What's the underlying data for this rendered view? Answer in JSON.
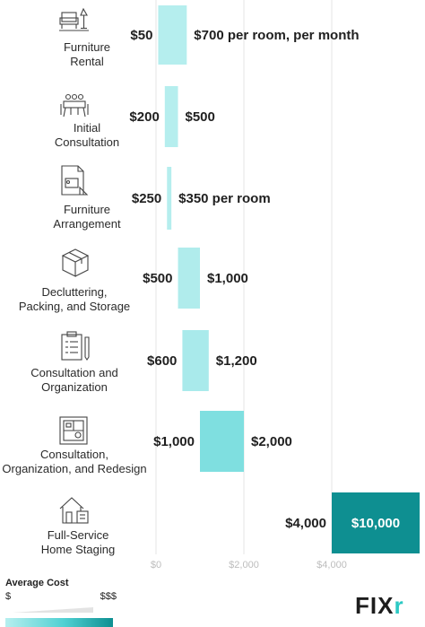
{
  "chart_data": {
    "type": "bar",
    "orientation": "horizontal-range",
    "x_ticks": [
      "$0",
      "$2,000",
      "$4,000"
    ],
    "x_tick_values": [
      0,
      2000,
      4000
    ],
    "xlim": [
      0,
      6000
    ],
    "grid": true,
    "ranges": [
      {
        "category": "Furniture Rental",
        "low": 50,
        "high": 700,
        "low_label": "$50",
        "high_label": "$700 per room, per month",
        "icon": "chair-lamp-icon",
        "color": "#b5eeee"
      },
      {
        "category": "Initial Consultation",
        "low": 200,
        "high": 500,
        "low_label": "$200",
        "high_label": "$500",
        "icon": "meeting-table-icon",
        "color": "#b5eeee"
      },
      {
        "category": "Furniture Arrangement",
        "low": 250,
        "high": 350,
        "low_label": "$250",
        "high_label": "$350 per room",
        "icon": "floor-plan-icon",
        "color": "#b5eeee"
      },
      {
        "category": "Decluttering, Packing, and Storage",
        "low": 500,
        "high": 1000,
        "low_label": "$500",
        "high_label": "$1,000",
        "icon": "box-icon",
        "color": "#b0ecec"
      },
      {
        "category": "Consultation and Organization",
        "low": 600,
        "high": 1200,
        "low_label": "$600",
        "high_label": "$1,200",
        "icon": "clipboard-icon",
        "color": "#a9eaeb"
      },
      {
        "category": "Consultation, Organization, and Redesign",
        "low": 1000,
        "high": 2000,
        "low_label": "$1,000",
        "high_label": "$2,000",
        "icon": "blueprint-icon",
        "color": "#7fdfe0"
      },
      {
        "category": "Full-Service Home Staging",
        "low": 4000,
        "high": 10000,
        "low_label": "$4,000",
        "high_label": "$10,000",
        "icon": "house-icon",
        "color": "#0e8f91"
      }
    ]
  },
  "labels": {
    "furniture_rental": [
      "Furniture",
      "Rental"
    ],
    "initial_consultation": [
      "Initial",
      "Consultation"
    ],
    "furniture_arrangement": [
      "Furniture",
      "Arrangement"
    ],
    "decluttering": [
      "Decluttering,",
      "Packing, and Storage"
    ],
    "consultation_org": [
      "Consultation and",
      "Organization"
    ],
    "consultation_redesign": [
      "Consultation,",
      "Organization, and Redesign"
    ],
    "home_staging": [
      "Full-Service",
      "Home Staging"
    ]
  },
  "legend": {
    "title": "Average Cost",
    "low": "$",
    "high": "$$$"
  },
  "logo": {
    "main": "FIX",
    "accent": "r"
  }
}
